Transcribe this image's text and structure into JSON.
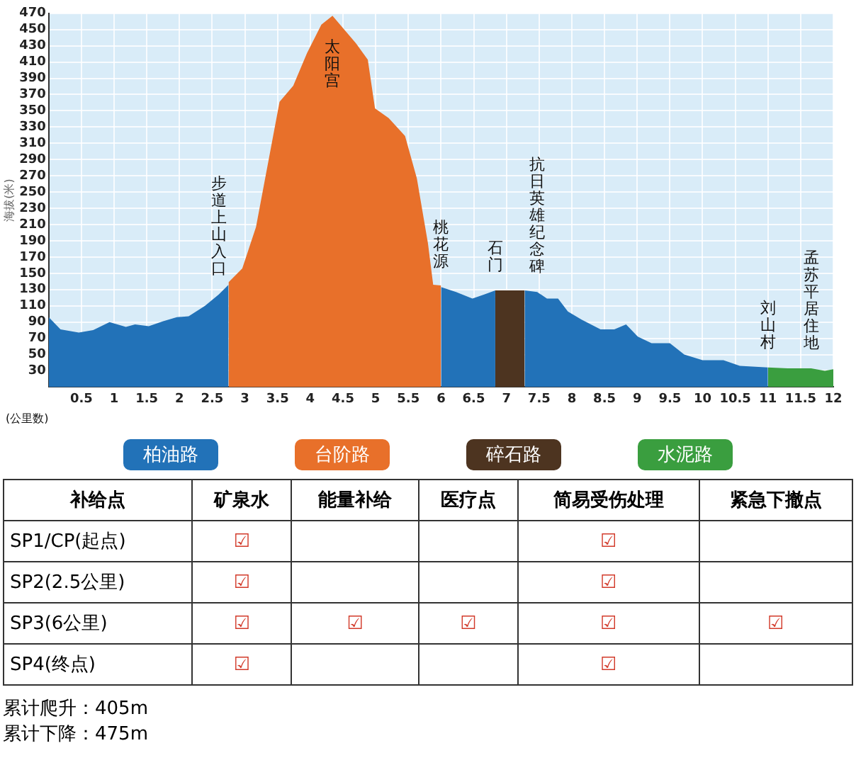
{
  "chart_data": [
    {
      "type": "area",
      "xlabel": "(公里数)",
      "ylabel": "海拔(米)",
      "xlim": [
        0,
        12
      ],
      "ylim": [
        10,
        470
      ],
      "xticks": [
        0.5,
        1,
        1.5,
        2,
        2.5,
        3,
        3.5,
        4,
        4.5,
        5,
        5.5,
        6,
        6.5,
        7,
        7.5,
        8,
        8.5,
        9,
        9.5,
        10,
        10.5,
        11,
        11.5,
        12
      ],
      "yticks": [
        30,
        50,
        70,
        90,
        110,
        130,
        150,
        170,
        190,
        210,
        230,
        250,
        270,
        290,
        310,
        330,
        350,
        370,
        390,
        410,
        430,
        450,
        470
      ],
      "grid": true,
      "legend": "bottom",
      "series": [
        {
          "name": "柏油路",
          "color": "#2272b8",
          "x": [
            0,
            0.18,
            0.46,
            0.68,
            0.93,
            1.18,
            1.32,
            1.53,
            1.75,
            1.96,
            2.14,
            2.39,
            2.6,
            2.75,
            null,
            6,
            6.23,
            6.48,
            6.66,
            6.83,
            null,
            7.28,
            7.47,
            7.62,
            7.79,
            7.94,
            8.15,
            8.44,
            8.65,
            8.83,
            9.01,
            9.22,
            9.5,
            9.72,
            10,
            10.32,
            10.57,
            11
          ],
          "values": [
            96,
            81,
            77,
            80,
            90,
            84,
            87,
            85,
            91,
            96,
            97,
            110,
            124,
            136,
            null,
            133,
            127,
            119,
            124,
            129,
            null,
            129,
            127,
            119,
            119,
            103,
            93,
            81,
            81,
            87,
            72,
            64,
            64,
            50,
            43,
            43,
            36,
            34
          ]
        },
        {
          "name": "台阶路",
          "color": "#e8702a",
          "x": [
            2.75,
            2.96,
            3.17,
            3.35,
            3.53,
            3.74,
            3.95,
            4.17,
            4.34,
            4.52,
            4.7,
            4.88,
            4.99,
            5.2,
            5.45,
            5.63,
            5.8,
            5.88,
            6
          ],
          "values": [
            139,
            156,
            207,
            284,
            361,
            381,
            421,
            456,
            467,
            450,
            433,
            413,
            353,
            341,
            319,
            267,
            187,
            136,
            135
          ]
        },
        {
          "name": "碎石路",
          "color": "#4d3420",
          "x": [
            6.83,
            7.28
          ],
          "values": [
            129,
            129
          ]
        },
        {
          "name": "水泥路",
          "color": "#3a9e3f",
          "x": [
            11,
            11.3,
            11.66,
            11.87,
            12
          ],
          "values": [
            34,
            33,
            33,
            30,
            32
          ]
        }
      ],
      "annotations": [
        {
          "text": "步道上山入口",
          "x": 2.6,
          "y": 124
        },
        {
          "text": "太阳宫",
          "x": 4.34,
          "y": 467
        },
        {
          "text": "桃花源",
          "x": 6,
          "y": 133
        },
        {
          "text": "石门",
          "x": 6.83,
          "y": 129
        },
        {
          "text": "抗日英雄纪念碑",
          "x": 7.47,
          "y": 127
        },
        {
          "text": "刘山村",
          "x": 11,
          "y": 34
        },
        {
          "text": "孟苏平居住地",
          "x": 11.66,
          "y": 33
        }
      ]
    },
    {
      "type": "other",
      "ylabel": "补给点",
      "categories": [
        "矿泉水",
        "能量补给",
        "医疗点",
        "简易受伤处理",
        "紧急下撤点"
      ],
      "y_categories": [
        "SP1/CP(起点)",
        "SP2(2.5公里)",
        "SP3(6公里)",
        "SP4(终点)"
      ],
      "cell_labels": [
        [
          "☑",
          null,
          null,
          "☑",
          null
        ],
        [
          "☑",
          null,
          null,
          "☑",
          null
        ],
        [
          "☑",
          "☑",
          "☑",
          "☑",
          "☑"
        ],
        [
          "☑",
          null,
          null,
          "☑",
          null
        ]
      ],
      "annotations": [
        "累计爬升：405m",
        "累计下降：475m"
      ]
    }
  ]
}
